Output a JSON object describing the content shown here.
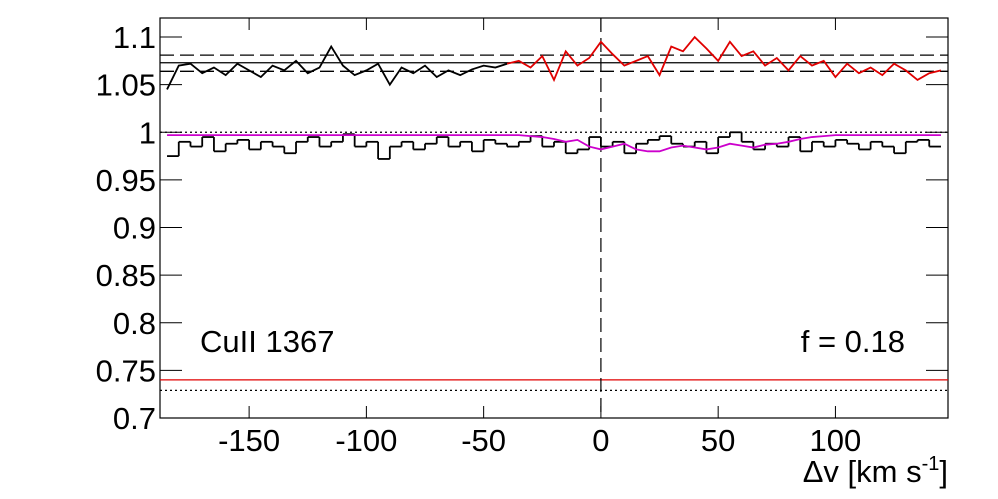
{
  "chart_data": {
    "type": "line",
    "xlabel": {
      "text": "Δv [km s",
      "sup": "-1",
      "tail": "]"
    },
    "annotations": [
      "CuII 1367",
      "f = 0.18"
    ],
    "xlim": [
      -188,
      148
    ],
    "ylim": [
      0.7,
      1.12
    ],
    "xticks": [
      -150,
      -100,
      -50,
      0,
      50,
      100
    ],
    "yticks": [
      0.7,
      0.75,
      0.8,
      0.85,
      0.9,
      0.95,
      1,
      1.05,
      1.1
    ],
    "series": [
      {
        "color": "#000000",
        "x": [
          -185,
          -180,
          -175,
          -170,
          -165,
          -160,
          -155,
          -150,
          -145,
          -140,
          -135,
          -130,
          -125,
          -120,
          -115,
          -110,
          -105,
          -100,
          -95,
          -90,
          -85,
          -80,
          -75,
          -70,
          -65,
          -60,
          -55,
          -50,
          -45,
          -40
        ],
        "values": [
          1.045,
          1.07,
          1.072,
          1.062,
          1.068,
          1.06,
          1.072,
          1.065,
          1.058,
          1.07,
          1.065,
          1.075,
          1.062,
          1.068,
          1.09,
          1.07,
          1.06,
          1.065,
          1.072,
          1.05,
          1.068,
          1.062,
          1.07,
          1.058,
          1.065,
          1.06,
          1.066,
          1.07,
          1.068,
          1.072
        ]
      },
      {
        "color": "#e00000",
        "x": [
          -40,
          -35,
          -30,
          -25,
          -20,
          -15,
          -10,
          -5,
          0,
          5,
          10,
          15,
          20,
          25,
          30,
          35,
          40,
          45,
          50,
          55,
          60,
          65,
          70,
          75,
          80,
          85,
          90,
          95,
          100,
          105,
          110,
          115,
          120,
          125,
          130,
          135,
          140,
          145
        ],
        "values": [
          1.072,
          1.075,
          1.068,
          1.08,
          1.055,
          1.085,
          1.07,
          1.078,
          1.095,
          1.082,
          1.07,
          1.075,
          1.08,
          1.06,
          1.09,
          1.085,
          1.1,
          1.088,
          1.075,
          1.095,
          1.08,
          1.085,
          1.07,
          1.078,
          1.065,
          1.08,
          1.07,
          1.075,
          1.058,
          1.072,
          1.062,
          1.068,
          1.06,
          1.072,
          1.065,
          1.055,
          1.062,
          1.065
        ]
      },
      {
        "type": "hist",
        "color": "#000000",
        "bins": [
          -185,
          -180,
          -175,
          -170,
          -165,
          -160,
          -155,
          -150,
          -145,
          -140,
          -135,
          -130,
          -125,
          -120,
          -115,
          -110,
          -105,
          -100,
          -95,
          -90,
          -85,
          -80,
          -75,
          -70,
          -65,
          -60,
          -55,
          -50,
          -45,
          -40,
          -35,
          -30,
          -25,
          -20,
          -15,
          -10,
          -5,
          0,
          5,
          10,
          15,
          20,
          25,
          30,
          35,
          40,
          45,
          50,
          55,
          60,
          65,
          70,
          75,
          80,
          85,
          90,
          95,
          100,
          105,
          110,
          115,
          120,
          125,
          130,
          135,
          140,
          145
        ],
        "values": [
          0.975,
          0.99,
          0.985,
          0.995,
          0.98,
          0.988,
          0.992,
          0.982,
          0.99,
          0.985,
          0.978,
          0.99,
          0.995,
          0.985,
          0.99,
          0.998,
          0.985,
          0.99,
          0.972,
          0.985,
          0.99,
          0.982,
          0.988,
          0.995,
          0.985,
          0.99,
          0.98,
          0.992,
          0.988,
          0.985,
          0.99,
          0.996,
          0.985,
          0.99,
          0.978,
          0.982,
          0.995,
          0.985,
          0.99,
          0.978,
          0.988,
          0.992,
          0.996,
          0.988,
          0.985,
          0.99,
          0.978,
          0.995,
          1.0,
          0.99,
          0.982,
          0.988,
          0.985,
          0.995,
          0.98,
          0.99,
          0.985,
          0.992,
          0.988,
          0.982,
          0.99,
          0.985,
          0.978,
          0.99,
          0.992,
          0.985
        ]
      },
      {
        "color": "#cc00cc",
        "x": [
          -185,
          -180,
          -175,
          -170,
          -165,
          -160,
          -155,
          -150,
          -145,
          -140,
          -135,
          -130,
          -125,
          -120,
          -115,
          -110,
          -105,
          -100,
          -95,
          -90,
          -85,
          -80,
          -75,
          -70,
          -65,
          -60,
          -55,
          -50,
          -45,
          -40,
          -35,
          -30,
          -25,
          -20,
          -15,
          -10,
          -5,
          0,
          5,
          10,
          15,
          20,
          25,
          30,
          35,
          40,
          45,
          50,
          55,
          60,
          65,
          70,
          75,
          80,
          85,
          90,
          95,
          100,
          105,
          110,
          115,
          120,
          125,
          130,
          135,
          140,
          145
        ],
        "values": [
          0.997,
          0.997,
          0.997,
          0.997,
          0.997,
          0.997,
          0.997,
          0.997,
          0.997,
          0.997,
          0.997,
          0.997,
          0.997,
          0.997,
          0.997,
          0.997,
          0.997,
          0.997,
          0.997,
          0.997,
          0.997,
          0.997,
          0.997,
          0.997,
          0.997,
          0.997,
          0.997,
          0.997,
          0.997,
          0.997,
          0.997,
          0.996,
          0.995,
          0.993,
          0.99,
          0.992,
          0.985,
          0.982,
          0.985,
          0.988,
          0.982,
          0.98,
          0.98,
          0.984,
          0.986,
          0.984,
          0.982,
          0.984,
          0.988,
          0.986,
          0.984,
          0.987,
          0.988,
          0.99,
          0.993,
          0.995,
          0.996,
          0.997,
          0.997,
          0.997,
          0.997,
          0.997,
          0.997,
          0.997,
          0.997,
          0.997,
          0.997
        ]
      }
    ],
    "hlines": [
      {
        "value": 1.073,
        "color": "#000000",
        "dash": "solid"
      },
      {
        "value": 1.081,
        "color": "#000000",
        "dash": "dashed"
      },
      {
        "value": 1.064,
        "color": "#000000",
        "dash": "dashed"
      },
      {
        "value": 1.0,
        "color": "#000000",
        "dash": "dotted"
      },
      {
        "value": 0.74,
        "color": "#e00000",
        "dash": "solid"
      },
      {
        "value": 0.729,
        "color": "#000000",
        "dash": "dotted"
      }
    ],
    "vlines": [
      {
        "value": 0,
        "color": "#000000",
        "dash": "dashed"
      }
    ]
  }
}
